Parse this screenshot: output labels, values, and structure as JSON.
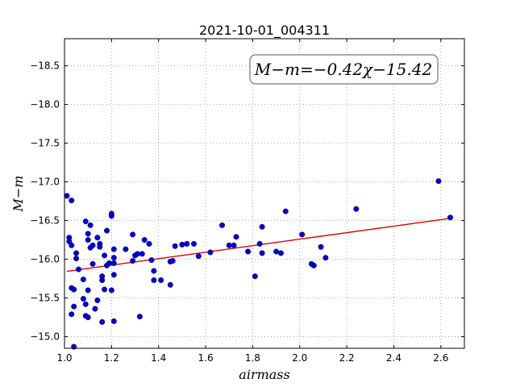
{
  "chart_data": {
    "type": "scatter",
    "title": "2021-10-01_004311",
    "xlabel": "airmass",
    "ylabel": "M−m",
    "xlim": [
      1.0,
      2.7
    ],
    "ylim": [
      -18.85,
      -14.85
    ],
    "y_inverted": true,
    "grid": true,
    "x_ticks": [
      1.0,
      1.2,
      1.4,
      1.6,
      1.8,
      2.0,
      2.2,
      2.4,
      2.6
    ],
    "x_tick_labels": [
      "1.0",
      "1.2",
      "1.4",
      "1.6",
      "1.8",
      "2.0",
      "2.2",
      "2.4",
      "2.6"
    ],
    "y_ticks": [
      -15.0,
      -15.5,
      -16.0,
      -16.5,
      -17.0,
      -17.5,
      -18.0,
      -18.5
    ],
    "y_tick_labels": [
      "−15.0",
      "−15.5",
      "−16.0",
      "−16.5",
      "−17.0",
      "−17.5",
      "−18.0",
      "−18.5"
    ],
    "annotation": "M−m=−0.42χ−15.42",
    "point_color": "#0000cc",
    "line_color": "#dd0000",
    "fit_line": {
      "slope": -0.42,
      "intercept": -15.42,
      "x": [
        1.01,
        2.64
      ]
    },
    "points": [
      [
        1.01,
        -16.82
      ],
      [
        1.02,
        -16.28
      ],
      [
        1.02,
        -16.23
      ],
      [
        1.03,
        -16.18
      ],
      [
        1.03,
        -16.76
      ],
      [
        1.03,
        -15.63
      ],
      [
        1.03,
        -15.29
      ],
      [
        1.04,
        -15.61
      ],
      [
        1.04,
        -15.39
      ],
      [
        1.04,
        -14.87
      ],
      [
        1.05,
        -16.01
      ],
      [
        1.05,
        -16.08
      ],
      [
        1.06,
        -15.87
      ],
      [
        1.08,
        -15.74
      ],
      [
        1.08,
        -15.49
      ],
      [
        1.09,
        -16.49
      ],
      [
        1.09,
        -15.42
      ],
      [
        1.09,
        -15.27
      ],
      [
        1.1,
        -16.33
      ],
      [
        1.1,
        -16.25
      ],
      [
        1.1,
        -15.25
      ],
      [
        1.1,
        -15.6
      ],
      [
        1.11,
        -16.44
      ],
      [
        1.11,
        -16.15
      ],
      [
        1.12,
        -15.94
      ],
      [
        1.12,
        -16.18
      ],
      [
        1.13,
        -15.36
      ],
      [
        1.14,
        -16.28
      ],
      [
        1.14,
        -15.47
      ],
      [
        1.15,
        -16.16
      ],
      [
        1.15,
        -16.2
      ],
      [
        1.16,
        -15.73
      ],
      [
        1.16,
        -15.78
      ],
      [
        1.16,
        -15.19
      ],
      [
        1.17,
        -16.05
      ],
      [
        1.17,
        -15.61
      ],
      [
        1.18,
        -16.37
      ],
      [
        1.18,
        -15.92
      ],
      [
        1.19,
        -15.95
      ],
      [
        1.2,
        -15.6
      ],
      [
        1.2,
        -16.56
      ],
      [
        1.2,
        -16.59
      ],
      [
        1.21,
        -16.02
      ],
      [
        1.21,
        -15.8
      ],
      [
        1.21,
        -15.95
      ],
      [
        1.21,
        -16.13
      ],
      [
        1.21,
        -15.2
      ],
      [
        1.26,
        -16.13
      ],
      [
        1.29,
        -16.32
      ],
      [
        1.29,
        -15.98
      ],
      [
        1.3,
        -16.05
      ],
      [
        1.31,
        -16.07
      ],
      [
        1.32,
        -15.26
      ],
      [
        1.33,
        -16.07
      ],
      [
        1.34,
        -16.25
      ],
      [
        1.36,
        -16.2
      ],
      [
        1.37,
        -15.99
      ],
      [
        1.38,
        -15.73
      ],
      [
        1.38,
        -15.85
      ],
      [
        1.41,
        -15.73
      ],
      [
        1.45,
        -15.67
      ],
      [
        1.45,
        -15.97
      ],
      [
        1.46,
        -15.98
      ],
      [
        1.47,
        -16.17
      ],
      [
        1.5,
        -16.19
      ],
      [
        1.52,
        -16.2
      ],
      [
        1.55,
        -16.2
      ],
      [
        1.57,
        -16.04
      ],
      [
        1.62,
        -16.09
      ],
      [
        1.67,
        -16.44
      ],
      [
        1.7,
        -16.18
      ],
      [
        1.72,
        -16.18
      ],
      [
        1.73,
        -16.29
      ],
      [
        1.78,
        -16.1
      ],
      [
        1.81,
        -15.78
      ],
      [
        1.83,
        -16.2
      ],
      [
        1.84,
        -16.08
      ],
      [
        1.84,
        -16.42
      ],
      [
        1.9,
        -16.1
      ],
      [
        1.92,
        -16.08
      ],
      [
        1.94,
        -16.62
      ],
      [
        2.01,
        -16.32
      ],
      [
        2.05,
        -15.94
      ],
      [
        2.06,
        -15.92
      ],
      [
        2.09,
        -16.16
      ],
      [
        2.11,
        -16.02
      ],
      [
        2.24,
        -16.65
      ],
      [
        2.59,
        -17.01
      ],
      [
        2.64,
        -16.54
      ]
    ]
  }
}
